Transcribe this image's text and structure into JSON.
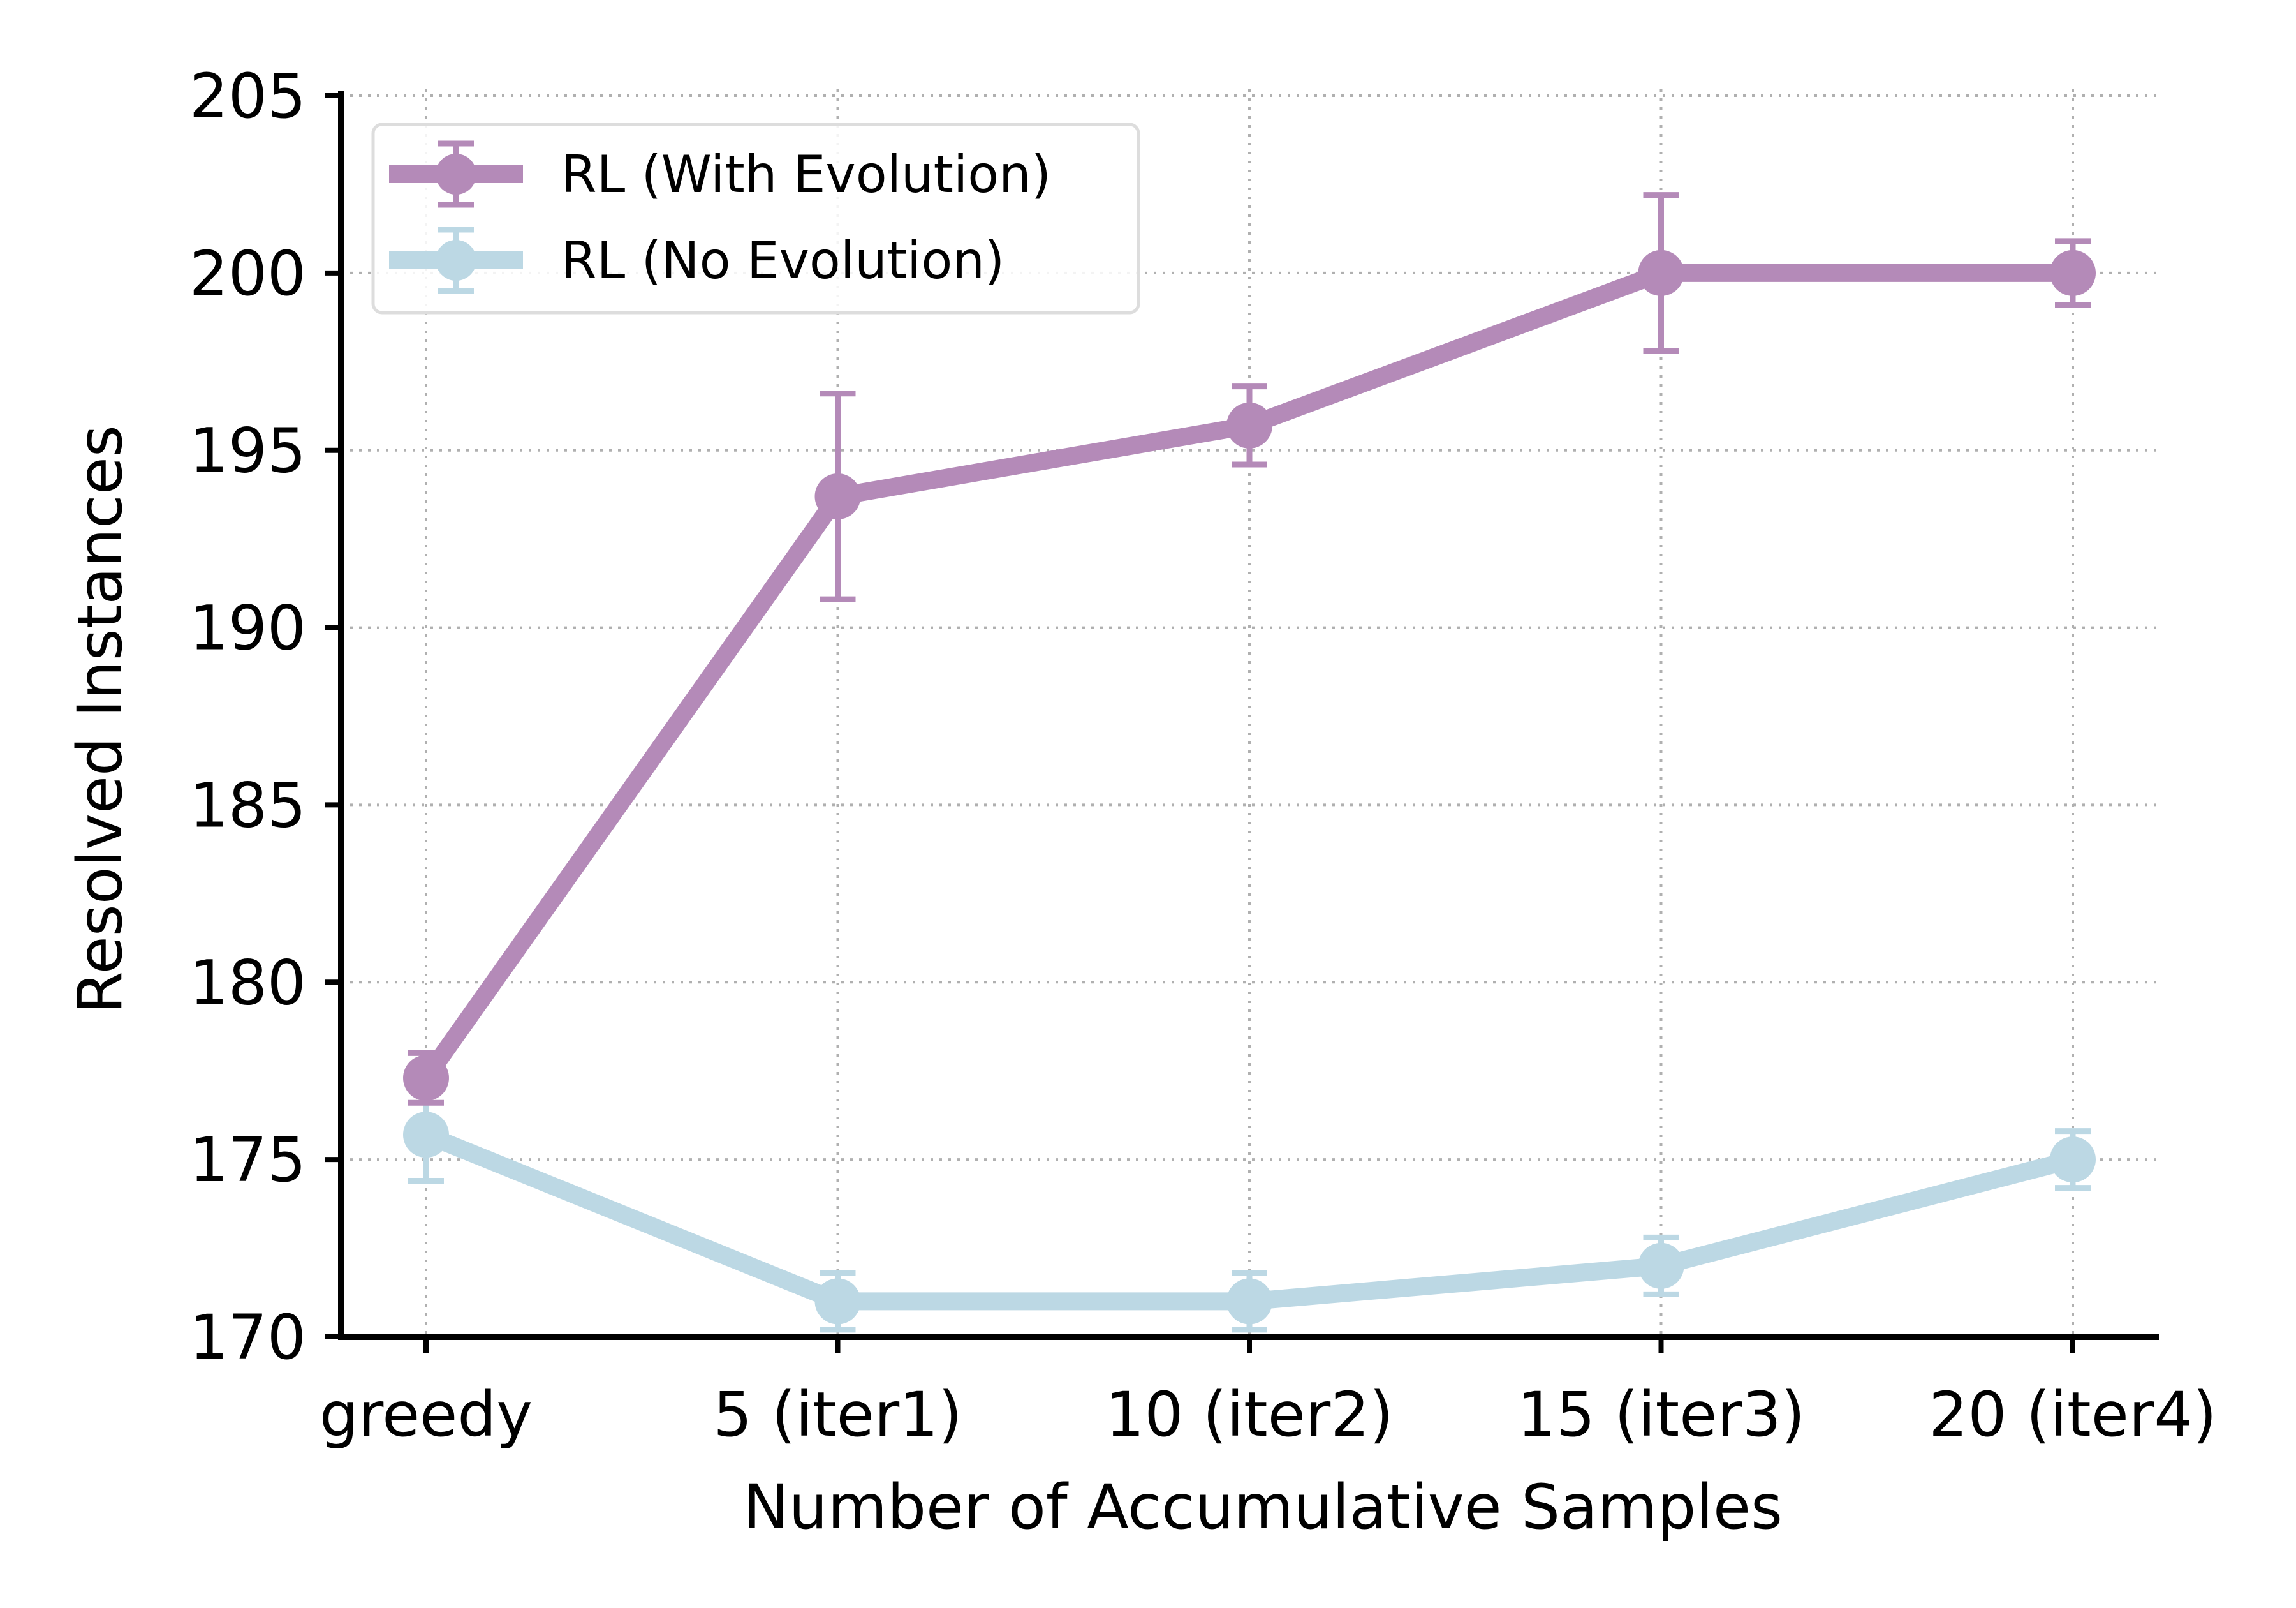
{
  "chart_data": {
    "type": "line",
    "categories": [
      "greedy",
      "5 (iter1)",
      "10 (iter2)",
      "15 (iter3)",
      "20 (iter4)"
    ],
    "xlabel": "Number of Accumulative Samples",
    "ylabel": "Resolved Instances",
    "ylim": [
      170,
      205
    ],
    "yticks": [
      170,
      175,
      180,
      185,
      190,
      195,
      200,
      205
    ],
    "grid": true,
    "legend_position": "top-left",
    "series": [
      {
        "name": "RL (With Evolution)",
        "color": "#b48ab8",
        "values": [
          177.3,
          193.7,
          195.7,
          200.0,
          200.0
        ],
        "errors": [
          0.7,
          2.9,
          1.1,
          2.2,
          0.9
        ]
      },
      {
        "name": "RL (No Evolution)",
        "color": "#bcd8e4",
        "values": [
          175.7,
          171.0,
          171.0,
          172.0,
          175.0
        ],
        "errors": [
          1.3,
          0.8,
          0.8,
          0.8,
          0.8
        ]
      }
    ]
  }
}
